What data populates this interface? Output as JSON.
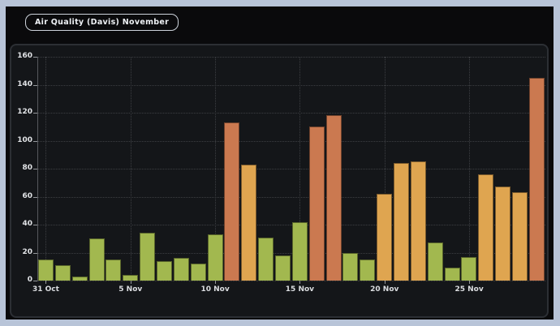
{
  "title": "Air Quality (Davis) November",
  "theme": {
    "frame_color": "#b8c4d8",
    "background": "#0a0a0c",
    "panel_background": "#141619",
    "panel_border": "#2c2f34",
    "gridline_color": "#3c3e42",
    "axis_color": "#56585c",
    "label_color": "#e2e4e7"
  },
  "chart_data": {
    "type": "bar",
    "title": "Air Quality (Davis) November",
    "xlabel": "",
    "ylabel": "",
    "ylim": [
      0,
      160
    ],
    "y_ticks": [
      0,
      20,
      40,
      60,
      80,
      100,
      120,
      140,
      160
    ],
    "grid": "dotted horizontal at every 20; dotted vertical at every 5-day tick",
    "legend_position": "none",
    "x_tick_labels": [
      "31 Oct",
      "5 Nov",
      "10 Nov",
      "15 Nov",
      "20 Nov",
      "25 Nov"
    ],
    "x_tick_every": 5,
    "x": [
      "31 Oct",
      "1 Nov",
      "2 Nov",
      "3 Nov",
      "4 Nov",
      "5 Nov",
      "6 Nov",
      "7 Nov",
      "8 Nov",
      "9 Nov",
      "10 Nov",
      "11 Nov",
      "12 Nov",
      "13 Nov",
      "14 Nov",
      "15 Nov",
      "16 Nov",
      "17 Nov",
      "18 Nov",
      "19 Nov",
      "20 Nov",
      "21 Nov",
      "22 Nov",
      "23 Nov",
      "24 Nov",
      "25 Nov",
      "26 Nov",
      "27 Nov",
      "28 Nov",
      "29 Nov"
    ],
    "values": [
      15,
      11,
      3,
      30,
      15,
      4,
      34,
      14,
      16,
      12,
      33,
      113,
      83,
      31,
      18,
      42,
      110,
      118,
      20,
      15,
      62,
      84,
      85,
      27,
      9,
      17,
      76,
      67,
      63,
      145
    ],
    "levels": [
      "good",
      "good",
      "good",
      "good",
      "good",
      "good",
      "good",
      "good",
      "good",
      "good",
      "good",
      "high",
      "moderate",
      "good",
      "good",
      "good",
      "high",
      "high",
      "good",
      "good",
      "moderate",
      "moderate",
      "moderate",
      "good",
      "good",
      "good",
      "moderate",
      "moderate",
      "moderate",
      "high"
    ],
    "colors": {
      "good": "#a2b84f",
      "moderate": "#dfa550",
      "high": "#cb7950"
    }
  }
}
